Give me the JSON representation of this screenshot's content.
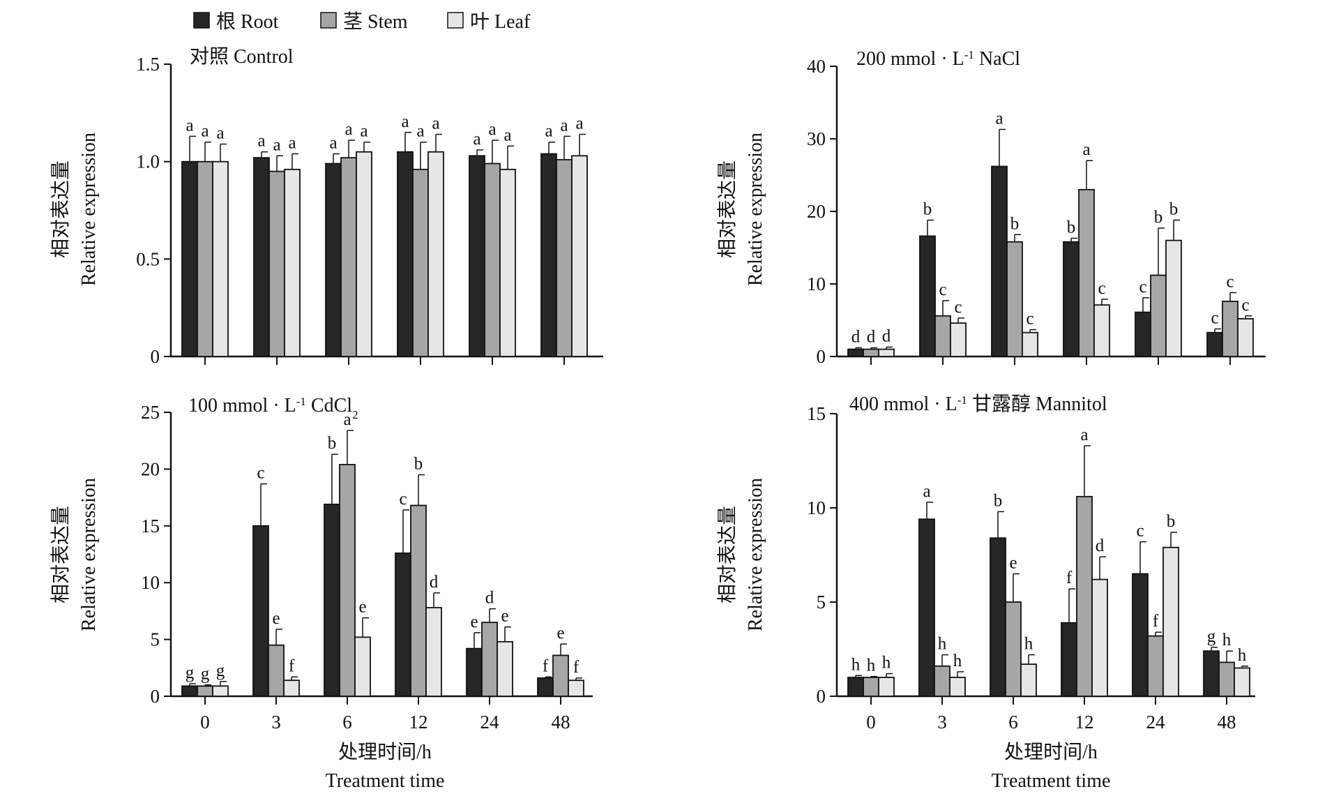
{
  "colors": {
    "root": "#262626",
    "stem": "#a6a6a6",
    "leaf": "#e6e6e6",
    "stroke": "#111111",
    "background": "#ffffff"
  },
  "legend": {
    "placement": "top",
    "items": [
      {
        "key": "root",
        "label": "根 Root"
      },
      {
        "key": "stem",
        "label": "茎 Stem"
      },
      {
        "key": "leaf",
        "label": "叶 Leaf"
      }
    ]
  },
  "axes_text": {
    "ylabel_cn": "相对表达量",
    "ylabel_en": "Relative expression",
    "xlabel_cn": "处理时间/h",
    "xlabel_en": "Treatment time"
  },
  "chart_data": [
    {
      "type": "bar",
      "title": "对照 Control",
      "title_parts": [
        {
          "t": "对照 Control"
        }
      ],
      "categories": [
        "0",
        "3",
        "6",
        "12",
        "24",
        "48"
      ],
      "ylim": [
        0,
        1.5
      ],
      "yticks": [
        0,
        0.5,
        1.0,
        1.5
      ],
      "ytick_labels": [
        "0",
        "0.5",
        "1.0",
        "1.5"
      ],
      "show_xtick_labels": false,
      "grid": false,
      "series": [
        {
          "name": "根 Root",
          "key": "root",
          "values": [
            1.0,
            1.02,
            0.99,
            1.05,
            1.03,
            1.04
          ],
          "errors": [
            0.13,
            0.03,
            0.05,
            0.1,
            0.03,
            0.06
          ],
          "letters": [
            "a",
            "a",
            "a",
            "a",
            "a",
            "a"
          ]
        },
        {
          "name": "茎 Stem",
          "key": "stem",
          "values": [
            1.0,
            0.95,
            1.02,
            0.96,
            0.99,
            1.01
          ],
          "errors": [
            0.1,
            0.08,
            0.09,
            0.14,
            0.12,
            0.12
          ],
          "letters": [
            "a",
            "a",
            "a",
            "a",
            "a",
            "a"
          ]
        },
        {
          "name": "叶 Leaf",
          "key": "leaf",
          "values": [
            1.0,
            0.96,
            1.05,
            1.05,
            0.96,
            1.03
          ],
          "errors": [
            0.09,
            0.08,
            0.05,
            0.09,
            0.12,
            0.11
          ],
          "letters": [
            "a",
            "a",
            "a",
            "a",
            "a",
            "a"
          ]
        }
      ]
    },
    {
      "type": "bar",
      "title": "200 mmol · L-1 NaCl",
      "title_parts": [
        {
          "t": "200 mmol · L"
        },
        {
          "t": "-1",
          "sup": true
        },
        {
          "t": " NaCl"
        }
      ],
      "categories": [
        "0",
        "3",
        "6",
        "12",
        "24",
        "48"
      ],
      "ylim": [
        0,
        40
      ],
      "yticks": [
        0,
        10,
        20,
        30,
        40
      ],
      "ytick_labels": [
        "0",
        "10",
        "20",
        "30",
        "40"
      ],
      "show_xtick_labels": false,
      "grid": false,
      "series": [
        {
          "name": "根 Root",
          "key": "root",
          "values": [
            1.0,
            16.6,
            26.2,
            15.8,
            6.1,
            3.3
          ],
          "errors": [
            0.2,
            2.2,
            5.1,
            0.5,
            2.0,
            0.5
          ],
          "letters": [
            "d",
            "b",
            "a",
            "b",
            "c",
            "c"
          ]
        },
        {
          "name": "茎 Stem",
          "key": "stem",
          "values": [
            1.0,
            5.6,
            15.8,
            23.0,
            11.2,
            7.6
          ],
          "errors": [
            0.2,
            2.1,
            1.0,
            4.0,
            6.5,
            1.2
          ],
          "letters": [
            "d",
            "c",
            "b",
            "a",
            "b",
            "c"
          ]
        },
        {
          "name": "叶 Leaf",
          "key": "leaf",
          "values": [
            1.0,
            4.6,
            3.3,
            7.1,
            16.0,
            5.2
          ],
          "errors": [
            0.3,
            0.7,
            0.4,
            0.8,
            2.8,
            0.4
          ],
          "letters": [
            "d",
            "c",
            "c",
            "c",
            "b",
            "c"
          ]
        }
      ]
    },
    {
      "type": "bar",
      "title": "100 mmol · L-1 CdCl2",
      "title_parts": [
        {
          "t": "100 mmol · L"
        },
        {
          "t": "-1",
          "sup": true
        },
        {
          "t": " CdCl"
        },
        {
          "t": "2",
          "sub": true
        }
      ],
      "categories": [
        "0",
        "3",
        "6",
        "12",
        "24",
        "48"
      ],
      "ylim": [
        0,
        25
      ],
      "yticks": [
        0,
        5,
        10,
        15,
        20,
        25
      ],
      "ytick_labels": [
        "0",
        "5",
        "10",
        "15",
        "20",
        "25"
      ],
      "show_xtick_labels": true,
      "grid": false,
      "series": [
        {
          "name": "根 Root",
          "key": "root",
          "values": [
            0.9,
            15.0,
            16.9,
            12.6,
            4.2,
            1.6
          ],
          "errors": [
            0.2,
            3.7,
            4.4,
            3.8,
            1.4,
            0.1
          ],
          "letters": [
            "g",
            "c",
            "b",
            "c",
            "e",
            "f"
          ]
        },
        {
          "name": "茎 Stem",
          "key": "stem",
          "values": [
            0.9,
            4.5,
            20.4,
            16.8,
            6.5,
            3.6
          ],
          "errors": [
            0.1,
            1.4,
            3.0,
            2.7,
            1.2,
            1.0
          ],
          "letters": [
            "g",
            "e",
            "a",
            "b",
            "d",
            "e"
          ]
        },
        {
          "name": "叶 Leaf",
          "key": "leaf",
          "values": [
            0.9,
            1.4,
            5.2,
            7.8,
            4.8,
            1.4
          ],
          "errors": [
            0.4,
            0.3,
            1.7,
            1.3,
            1.3,
            0.2
          ],
          "letters": [
            "g",
            "f",
            "e",
            "d",
            "e",
            "f"
          ]
        }
      ]
    },
    {
      "type": "bar",
      "title": "400 mmol · L-1 甘露醇 Mannitol",
      "title_parts": [
        {
          "t": "400 mmol · L"
        },
        {
          "t": "-1",
          "sup": true
        },
        {
          "t": " 甘露醇 Mannitol"
        }
      ],
      "categories": [
        "0",
        "3",
        "6",
        "12",
        "24",
        "48"
      ],
      "ylim": [
        0,
        15
      ],
      "yticks": [
        0,
        5,
        10,
        15
      ],
      "ytick_labels": [
        "0",
        "5",
        "10",
        "15"
      ],
      "show_xtick_labels": true,
      "grid": false,
      "series": [
        {
          "name": "根 Root",
          "key": "root",
          "values": [
            1.0,
            9.4,
            8.4,
            3.9,
            6.5,
            2.4
          ],
          "errors": [
            0.1,
            0.9,
            1.4,
            1.8,
            1.7,
            0.2
          ],
          "letters": [
            "h",
            "a",
            "b",
            "f",
            "c",
            "g"
          ]
        },
        {
          "name": "茎 Stem",
          "key": "stem",
          "values": [
            1.0,
            1.6,
            5.0,
            10.6,
            3.2,
            1.8
          ],
          "errors": [
            0.05,
            0.6,
            1.5,
            2.7,
            0.2,
            0.6
          ],
          "letters": [
            "h",
            "h",
            "e",
            "a",
            "f",
            "h"
          ]
        },
        {
          "name": "叶 Leaf",
          "key": "leaf",
          "values": [
            1.0,
            1.0,
            1.7,
            6.2,
            7.9,
            1.5
          ],
          "errors": [
            0.2,
            0.3,
            0.5,
            1.2,
            0.8,
            0.1
          ],
          "letters": [
            "h",
            "h",
            "h",
            "d",
            "b",
            "h"
          ]
        }
      ]
    }
  ]
}
